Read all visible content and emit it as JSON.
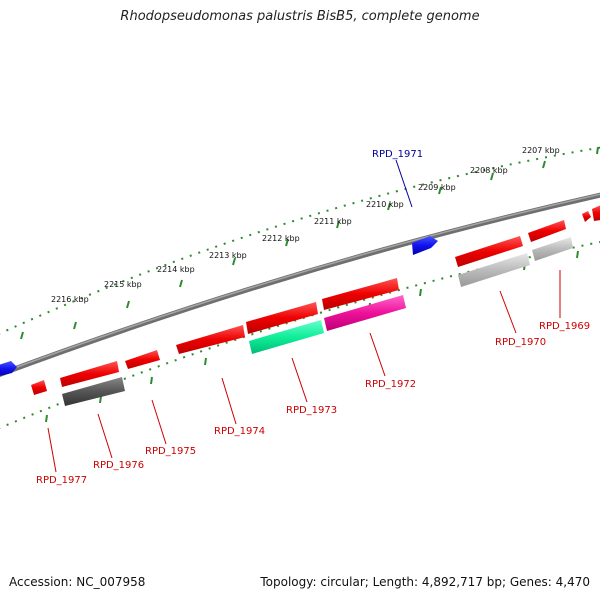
{
  "title": "Rhodopseudomonas palustris BisB5, complete genome",
  "footer": {
    "accession": "Accession: NC_007958",
    "summary": "Topology: circular; Length: 4,892,717 bp; Genes: 4,470"
  },
  "colors": {
    "backbone": "#7a7a7a",
    "tick": "#2e8b2e",
    "forward_gene": "#ee1111",
    "reverse_gene": "#1111dd",
    "label_red": "#cc0000",
    "label_blue": "#000099"
  },
  "scale_labels": [
    "2207 kbp",
    "2208 kbp",
    "2209 kbp",
    "2210 kbp",
    "2211 kbp",
    "2212 kbp",
    "2213 kbp",
    "2214 kbp",
    "2215 kbp",
    "2216 kbp"
  ],
  "gene_labels": [
    {
      "text": "RPD_1971",
      "strand": "reverse"
    },
    {
      "text": "RPD_1969",
      "strand": "forward"
    },
    {
      "text": "RPD_1970",
      "strand": "forward"
    },
    {
      "text": "RPD_1972",
      "strand": "forward"
    },
    {
      "text": "RPD_1973",
      "strand": "forward"
    },
    {
      "text": "RPD_1974",
      "strand": "forward"
    },
    {
      "text": "RPD_1975",
      "strand": "forward"
    },
    {
      "text": "RPD_1976",
      "strand": "forward"
    },
    {
      "text": "RPD_1977",
      "strand": "forward"
    }
  ]
}
